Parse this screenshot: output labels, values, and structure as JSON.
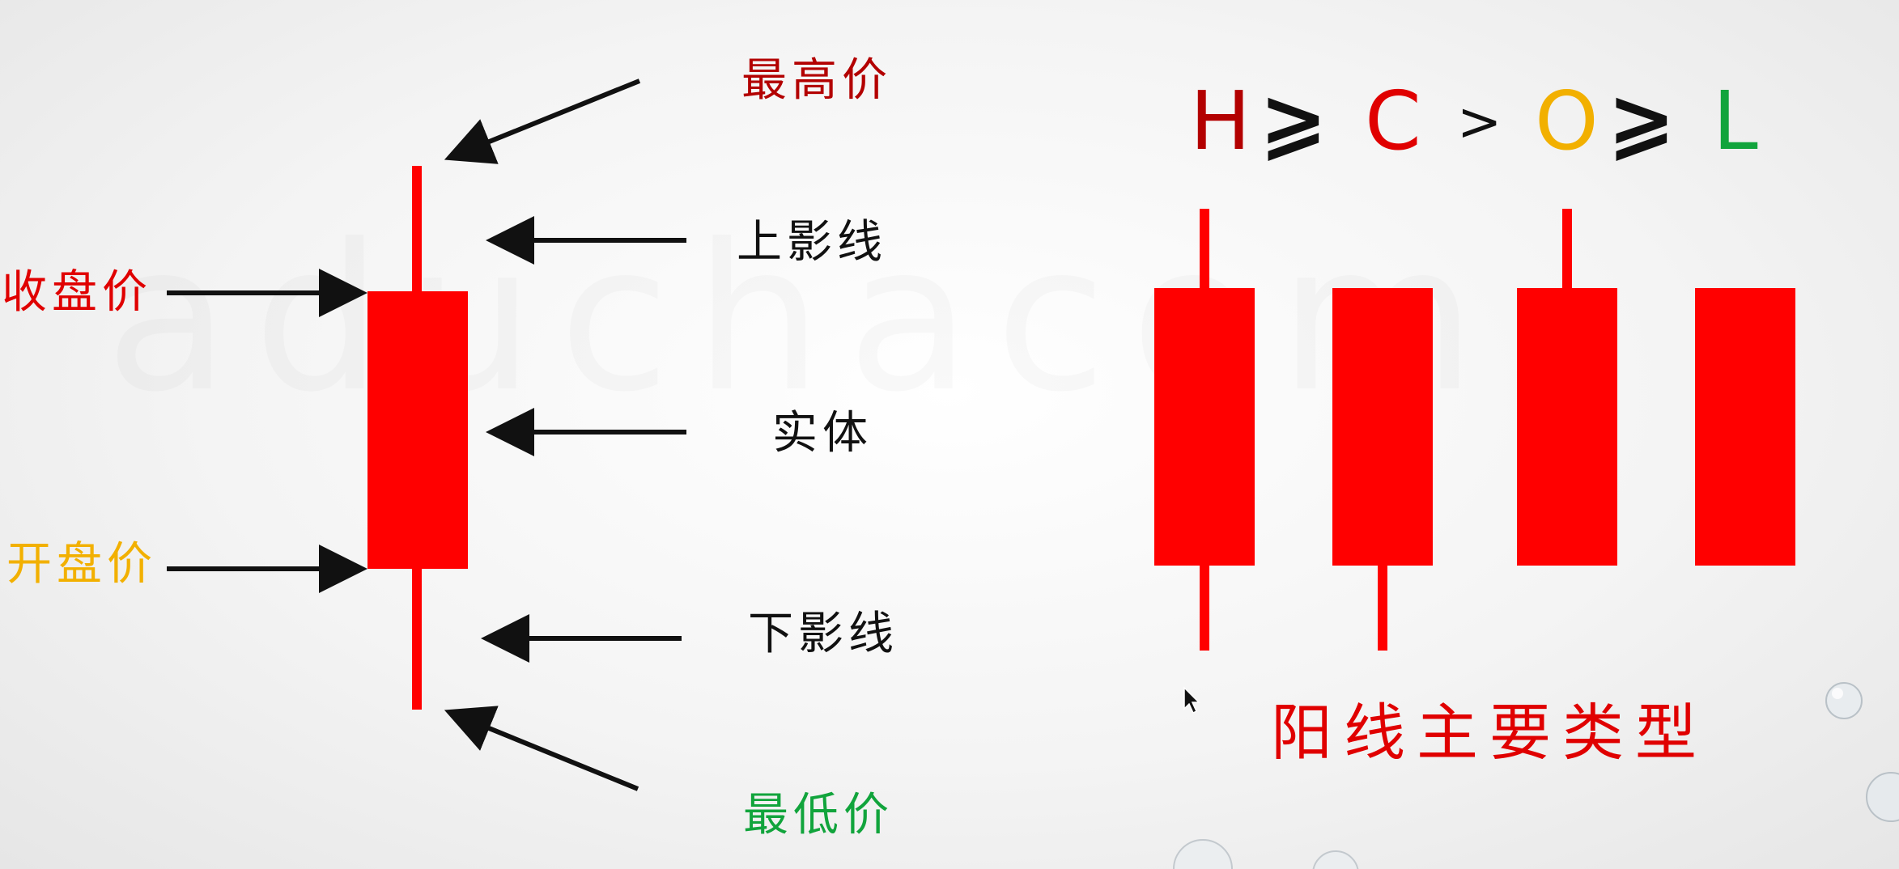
{
  "anatomy": {
    "high_label": "最高价",
    "upper_shadow_label": "上影线",
    "close_label": "收盘价",
    "body_label": "实体",
    "open_label": "开盘价",
    "lower_shadow_label": "下影线",
    "low_label": "最低价"
  },
  "formula": {
    "h": "H",
    "op1": "⩾",
    "c": "C",
    "op2": ">",
    "o": "O",
    "op3": "⩾",
    "l": "L"
  },
  "types_title": "阳线主要类型",
  "colors": {
    "candle": "#ff0000",
    "high": "#b30000",
    "close": "#e00000",
    "open": "#f2b000",
    "low": "#11a43c",
    "neutral": "#111111",
    "arrow": "#111111"
  },
  "candle_types": [
    {
      "has_upper_shadow": true,
      "has_lower_shadow": true
    },
    {
      "has_upper_shadow": false,
      "has_lower_shadow": true
    },
    {
      "has_upper_shadow": true,
      "has_lower_shadow": false
    },
    {
      "has_upper_shadow": false,
      "has_lower_shadow": false
    }
  ]
}
